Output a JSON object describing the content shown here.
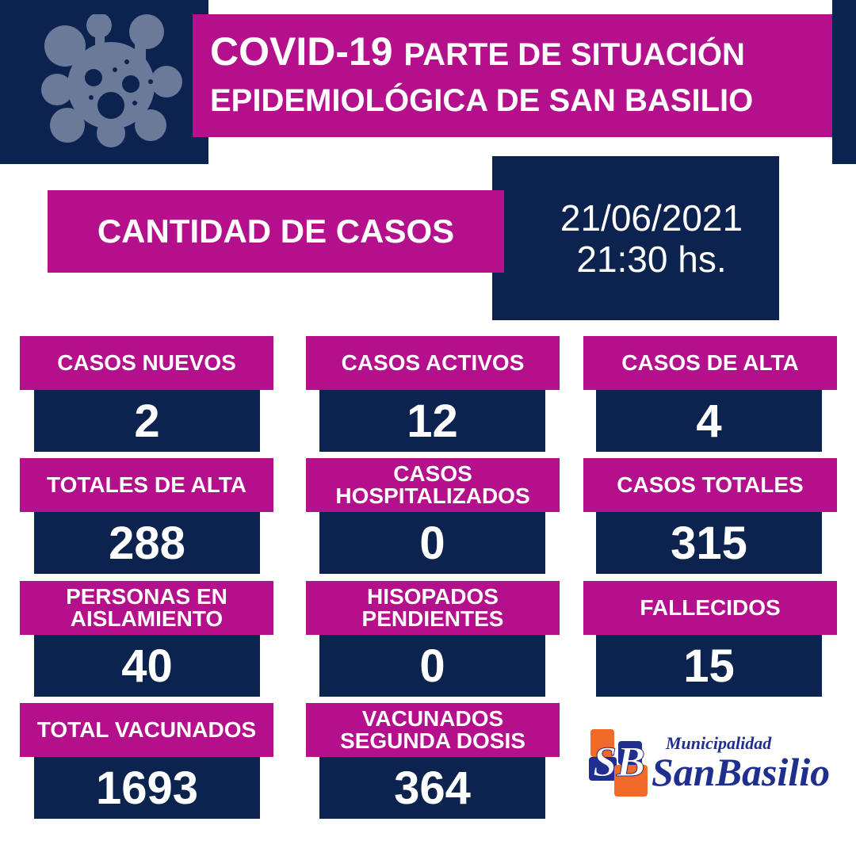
{
  "header": {
    "title_main": "COVID-19",
    "title_rest": "PARTE DE SITUACIÓN",
    "title_line2": "EPIDEMIOLÓGICA DE SAN BASILIO",
    "icon": "virus-icon"
  },
  "section_label": "CANTIDAD DE CASOS",
  "report": {
    "date": "21/06/2021",
    "time": "21:30 hs."
  },
  "stats": [
    {
      "label": "CASOS NUEVOS",
      "value": "2"
    },
    {
      "label": "CASOS ACTIVOS",
      "value": "12"
    },
    {
      "label": "CASOS DE ALTA",
      "value": "4"
    },
    {
      "label": "TOTALES DE ALTA",
      "value": "288"
    },
    {
      "label": "CASOS HOSPITALIZADOS",
      "value": "0"
    },
    {
      "label": "CASOS TOTALES",
      "value": "315"
    },
    {
      "label": "PERSONAS EN AISLAMIENTO",
      "value": "40"
    },
    {
      "label": "HISOPADOS PENDIENTES",
      "value": "0"
    },
    {
      "label": "FALLECIDOS",
      "value": "15"
    },
    {
      "label": "TOTAL VACUNADOS",
      "value": "1693"
    },
    {
      "label": "VACUNADOS SEGUNDA DOSIS",
      "value": "364"
    }
  ],
  "logo": {
    "monogram": "SB",
    "line1": "Municipalidad",
    "line2": "SanBasilio"
  },
  "colors": {
    "navy": "#0c2350",
    "magenta": "#b5108b",
    "logo_orange": "#f26a2a",
    "logo_blue": "#1f2f8f"
  }
}
